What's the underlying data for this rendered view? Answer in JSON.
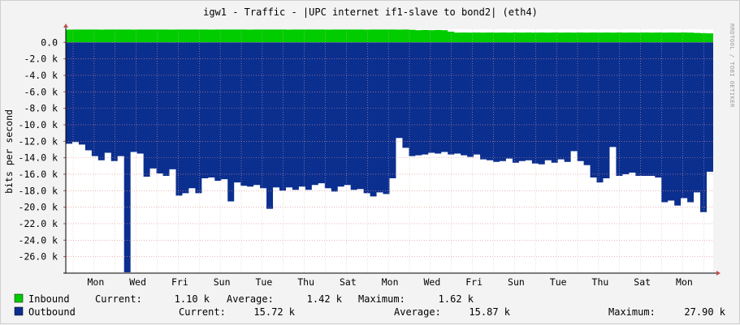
{
  "title": "igw1 - Traffic - |UPC internet if1-slave to bond2| (eth4)",
  "watermark": "RRDTOOL / TOBI OETIKER",
  "colors": {
    "inbound": "#00cc00",
    "outbound": "#0b2f8f",
    "canvas": "#ffffff",
    "background": "#f3f3f3",
    "grid_minor": "#e6b3b3",
    "grid_major": "#d98a8a",
    "axis": "#000000",
    "arrow": "#c05050"
  },
  "legend": [
    {
      "label": "Inbound",
      "current_label": "Current:",
      "current": "1.10 k",
      "average_label": "Average:",
      "average": "1.42 k",
      "maximum_label": "Maximum:",
      "maximum": "1.62 k"
    },
    {
      "label": "Outbound",
      "current_label": "Current:",
      "current": "15.72 k",
      "average_label": "Average:",
      "average": "15.87 k",
      "maximum_label": "Maximum:",
      "maximum": "27.90 k"
    }
  ],
  "chart_data": {
    "type": "area",
    "title": "igw1 - Traffic - |UPC internet if1-slave to bond2| (eth4)",
    "ylabel": "bits per second",
    "ylim": [
      -28000,
      1600
    ],
    "y_ticks": [
      0,
      -2000,
      -4000,
      -6000,
      -8000,
      -10000,
      -12000,
      -14000,
      -16000,
      -18000,
      -20000,
      -22000,
      -24000,
      -26000
    ],
    "y_tick_labels": [
      "0.0",
      "-2.0 k",
      "-4.0 k",
      "-6.0 k",
      "-8.0 k",
      "-10.0 k",
      "-12.0 k",
      "-14.0 k",
      "-16.0 k",
      "-18.0 k",
      "-20.0 k",
      "-22.0 k",
      "-24.0 k",
      "-26.0 k"
    ],
    "x_labels": [
      "Mon",
      "Wed",
      "Fri",
      "Sun",
      "Tue",
      "Thu",
      "Sat",
      "Mon",
      "Wed",
      "Fri",
      "Sun",
      "Tue",
      "Thu",
      "Sat",
      "Mon"
    ],
    "grid": true,
    "series": [
      {
        "name": "Inbound",
        "values": [
          1550,
          1560,
          1560,
          1560,
          1560,
          1550,
          1560,
          1560,
          1560,
          1560,
          1550,
          1560,
          1560,
          1560,
          1560,
          1560,
          1550,
          1560,
          1560,
          1560,
          1560,
          1560,
          1550,
          1560,
          1560,
          1560,
          1560,
          1560,
          1550,
          1560,
          1560,
          1560,
          1560,
          1560,
          1550,
          1560,
          1560,
          1560,
          1560,
          1560,
          1550,
          1560,
          1560,
          1560,
          1560,
          1560,
          1550,
          1560,
          1560,
          1560,
          1560,
          1550,
          1560,
          1520,
          1480,
          1500,
          1480,
          1500,
          1480,
          1300,
          1180,
          1200,
          1180,
          1200,
          1180,
          1200,
          1180,
          1200,
          1180,
          1200,
          1180,
          1200,
          1180,
          1200,
          1180,
          1200,
          1180,
          1200,
          1180,
          1200,
          1180,
          1200,
          1180,
          1200,
          1180,
          1200,
          1180,
          1200,
          1180,
          1200,
          1180,
          1200,
          1180,
          1200,
          1180,
          1200,
          1180,
          1150,
          1120,
          1100
        ]
      },
      {
        "name": "Outbound",
        "values": [
          12300,
          12100,
          12400,
          13100,
          13800,
          14300,
          13400,
          14400,
          13800,
          27900,
          13300,
          13500,
          16300,
          15300,
          15900,
          16200,
          15400,
          18600,
          18300,
          17700,
          18300,
          16500,
          16400,
          16800,
          16600,
          19300,
          17000,
          17400,
          17500,
          17300,
          17700,
          20200,
          17600,
          18000,
          17600,
          17900,
          17500,
          17900,
          17300,
          17100,
          17700,
          18100,
          17500,
          17300,
          17900,
          17800,
          18300,
          18700,
          18200,
          18400,
          16500,
          11600,
          12800,
          13800,
          13700,
          13600,
          13400,
          13500,
          13300,
          13600,
          13500,
          13700,
          13900,
          13600,
          14200,
          14300,
          14500,
          14400,
          14100,
          14600,
          14400,
          14300,
          14700,
          14800,
          14300,
          14600,
          14200,
          14500,
          13200,
          14400,
          14900,
          16400,
          17000,
          16500,
          12700,
          16200,
          16000,
          15800,
          16200,
          16200,
          16200,
          16400,
          19400,
          19200,
          19800,
          18900,
          19400,
          18200,
          20600,
          15700
        ]
      }
    ]
  }
}
